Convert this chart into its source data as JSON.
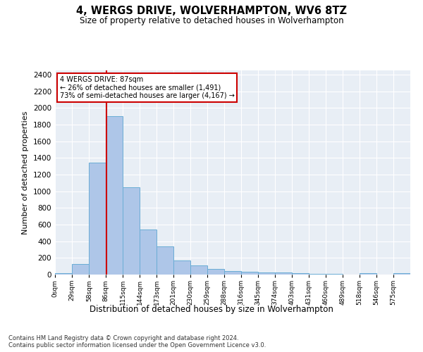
{
  "title": "4, WERGS DRIVE, WOLVERHAMPTON, WV6 8TZ",
  "subtitle": "Size of property relative to detached houses in Wolverhampton",
  "xlabel": "Distribution of detached houses by size in Wolverhampton",
  "ylabel": "Number of detached properties",
  "footer_line1": "Contains HM Land Registry data © Crown copyright and database right 2024.",
  "footer_line2": "Contains public sector information licensed under the Open Government Licence v3.0.",
  "annotation_title": "4 WERGS DRIVE: 87sqm",
  "annotation_line1": "← 26% of detached houses are smaller (1,491)",
  "annotation_line2": "73% of semi-detached houses are larger (4,167) →",
  "bar_color": "#aec6e8",
  "bar_edge_color": "#6aadd5",
  "redline_value": 87,
  "annotation_box_color": "#ffffff",
  "annotation_box_edge_color": "#cc0000",
  "categories": [
    "0sqm",
    "29sqm",
    "58sqm",
    "86sqm",
    "115sqm",
    "144sqm",
    "173sqm",
    "201sqm",
    "230sqm",
    "259sqm",
    "288sqm",
    "316sqm",
    "345sqm",
    "374sqm",
    "403sqm",
    "431sqm",
    "460sqm",
    "489sqm",
    "518sqm",
    "546sqm",
    "575sqm"
  ],
  "bin_edges": [
    0,
    29,
    58,
    86,
    115,
    144,
    173,
    201,
    230,
    259,
    288,
    316,
    345,
    374,
    403,
    431,
    460,
    489,
    518,
    546,
    575,
    604
  ],
  "values": [
    20,
    125,
    1340,
    1900,
    1045,
    540,
    340,
    170,
    110,
    65,
    40,
    30,
    27,
    22,
    15,
    8,
    5,
    0,
    20,
    0,
    20
  ],
  "ylim": [
    0,
    2450
  ],
  "yticks": [
    0,
    200,
    400,
    600,
    800,
    1000,
    1200,
    1400,
    1600,
    1800,
    2000,
    2200,
    2400
  ],
  "figsize": [
    6.0,
    5.0
  ],
  "dpi": 100,
  "background_color": "#ffffff",
  "plot_bg_color": "#e8eef5"
}
